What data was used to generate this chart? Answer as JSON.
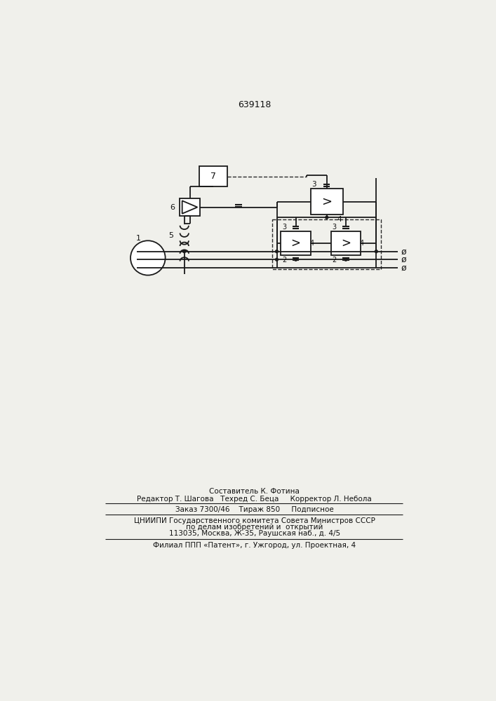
{
  "patent_number": "639118",
  "background_color": "#f0f0eb",
  "line_color": "#1a1a1a",
  "dashed_color": "#2a2a2a",
  "text_color": "#111111",
  "footer_lines": [
    "Составитель К. Фотина",
    "Редактор Т. Шагова   Техред С. Беца     Корректор Л. Небола",
    "Заказ 7300/46    Тираж 850     Подписное",
    "ЦНИИПИ Государственного комитета Совета Министров СССР",
    "по делам изобретений и  открытий",
    "113035, Москва, Ж-35, Раушская наб., д. 4/5",
    "Филиал ППП «Патент», г. Ужгород, ул. Проектная, 4"
  ]
}
